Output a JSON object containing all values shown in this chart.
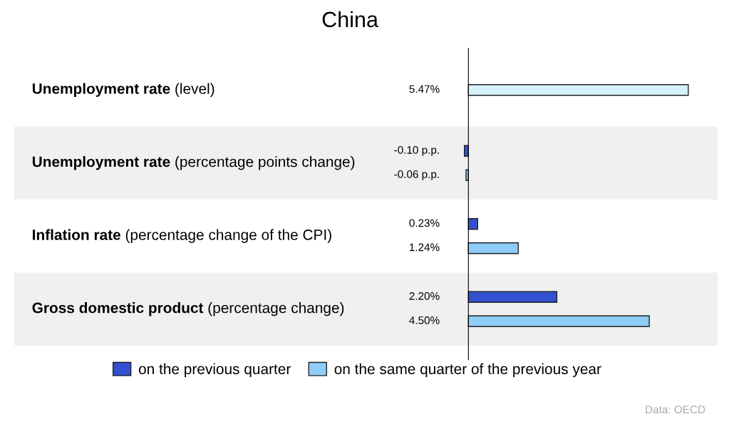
{
  "chart_data": {
    "type": "bar",
    "orientation": "horizontal",
    "title": "China",
    "categories": [
      "Unemployment rate (level)",
      "Unemployment rate (percentage points change)",
      "Inflation rate (percentage change of the CPI)",
      "Gross domestic product (percentage change)"
    ],
    "series": [
      {
        "name": "on the previous quarter",
        "color": "#3350d0",
        "values": [
          null,
          -0.1,
          0.23,
          2.2
        ],
        "value_labels": [
          null,
          "-0.10 p.p.",
          "0.23%",
          "2.20%"
        ]
      },
      {
        "name": "on the same quarter of the previous year",
        "color": "#8ecdf8",
        "colors": [
          "#d4f1fc",
          "#8ecdf8",
          "#8ecdf8",
          "#8ecdf8"
        ],
        "values": [
          5.47,
          -0.06,
          1.24,
          4.5
        ],
        "value_labels": [
          "5.47%",
          "-0.06 p.p.",
          "1.24%",
          "4.50%"
        ]
      }
    ],
    "xlim": [
      -11.3,
      6.2
    ],
    "legend": "bottom",
    "annotations": [
      "Data: OECD"
    ]
  }
}
